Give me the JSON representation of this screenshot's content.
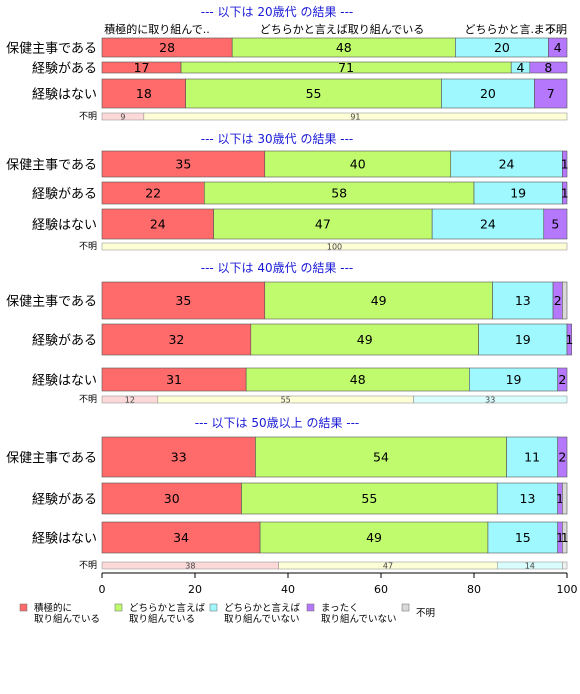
{
  "chart_data": {
    "type": "bar",
    "stacked": true,
    "orientation": "horizontal",
    "xlim": [
      0,
      100
    ],
    "xticks": [
      0,
      20,
      40,
      60,
      80,
      100
    ],
    "column_headers": [
      "積極的に取り組んで..",
      "どちらかと言えば取り組んでいる",
      "どちらかと言..",
      "まっ..",
      "不明"
    ],
    "legend": [
      {
        "name": "積極的に\n取り組んでいる",
        "color": "#ff6b6b"
      },
      {
        "name": "どちらかと言えば\n取り組んでいる",
        "color": "#c0fb6e"
      },
      {
        "name": "どちらかと言えば\n取り組んでいない",
        "color": "#9ef8fe"
      },
      {
        "name": "まったく\n取り組んでいない",
        "color": "#b578fc"
      },
      {
        "name": "不明",
        "color": "#d9d9d9"
      }
    ],
    "fumei_colors": [
      "#fcd9d9",
      "#fdfdd6",
      "#d9fdfd",
      "#e7dafd",
      "#f0f0f0"
    ],
    "groups": [
      {
        "title": "--- 以下は 20歳代 の結果 ---",
        "rows": [
          {
            "label": "保健主事である",
            "values": [
              28,
              48,
              20,
              4,
              0
            ],
            "labels": [
              "28",
              "48",
              "20",
              "4",
              ""
            ]
          },
          {
            "label": "経験がある",
            "values": [
              17,
              71,
              4,
              8,
              0
            ],
            "labels": [
              "17",
              "71",
              "4",
              "8",
              ""
            ]
          },
          {
            "label": "経験はない",
            "values": [
              18,
              55,
              20,
              7,
              0
            ],
            "labels": [
              "18",
              "55",
              "20",
              "7",
              ""
            ]
          }
        ],
        "fumei": {
          "label": "不明",
          "values": [
            9,
            91,
            0,
            0,
            0
          ],
          "labels": [
            "9",
            "91",
            "",
            "",
            ""
          ]
        }
      },
      {
        "title": "--- 以下は 30歳代 の結果 ---",
        "rows": [
          {
            "label": "保健主事である",
            "values": [
              35,
              40,
              24,
              1,
              0
            ],
            "labels": [
              "35",
              "40",
              "24",
              "1",
              ""
            ]
          },
          {
            "label": "経験がある",
            "values": [
              22,
              58,
              19,
              1,
              0
            ],
            "labels": [
              "22",
              "58",
              "19",
              "1",
              ""
            ]
          },
          {
            "label": "経験はない",
            "values": [
              24,
              47,
              24,
              5,
              0
            ],
            "labels": [
              "24",
              "47",
              "24",
              "5",
              ""
            ]
          }
        ],
        "fumei": {
          "label": "不明",
          "values": [
            0,
            100,
            0,
            0,
            0
          ],
          "labels": [
            "",
            "100",
            "",
            "",
            ""
          ]
        }
      },
      {
        "title": "--- 以下は 40歳代 の結果 ---",
        "rows": [
          {
            "label": "保健主事である",
            "values": [
              35,
              49,
              13,
              2,
              1
            ],
            "labels": [
              "35",
              "49",
              "13",
              "2",
              ""
            ]
          },
          {
            "label": "経験がある",
            "values": [
              32,
              49,
              19,
              1,
              0
            ],
            "labels": [
              "32",
              "49",
              "19",
              "1",
              ""
            ]
          },
          {
            "label": "経験はない",
            "values": [
              31,
              48,
              19,
              2,
              0
            ],
            "labels": [
              "31",
              "48",
              "19",
              "2",
              ""
            ]
          }
        ],
        "fumei": {
          "label": "不明",
          "values": [
            12,
            55,
            33,
            0,
            0
          ],
          "labels": [
            "12",
            "55",
            "33",
            "",
            ""
          ]
        }
      },
      {
        "title": "--- 以下は 50歳以上 の結果 ---",
        "rows": [
          {
            "label": "保健主事である",
            "values": [
              33,
              54,
              11,
              2,
              0
            ],
            "labels": [
              "33",
              "54",
              "11",
              "2",
              ""
            ]
          },
          {
            "label": "経験がある",
            "values": [
              30,
              55,
              13,
              1,
              1
            ],
            "labels": [
              "30",
              "55",
              "13",
              "1",
              ""
            ]
          },
          {
            "label": "経験はない",
            "values": [
              34,
              49,
              15,
              1,
              1
            ],
            "labels": [
              "34",
              "49",
              "15",
              "1",
              "1"
            ]
          }
        ],
        "fumei": {
          "label": "不明",
          "values": [
            38,
            47,
            14,
            0,
            1
          ],
          "labels": [
            "38",
            "47",
            "14",
            "",
            ""
          ]
        }
      }
    ]
  }
}
